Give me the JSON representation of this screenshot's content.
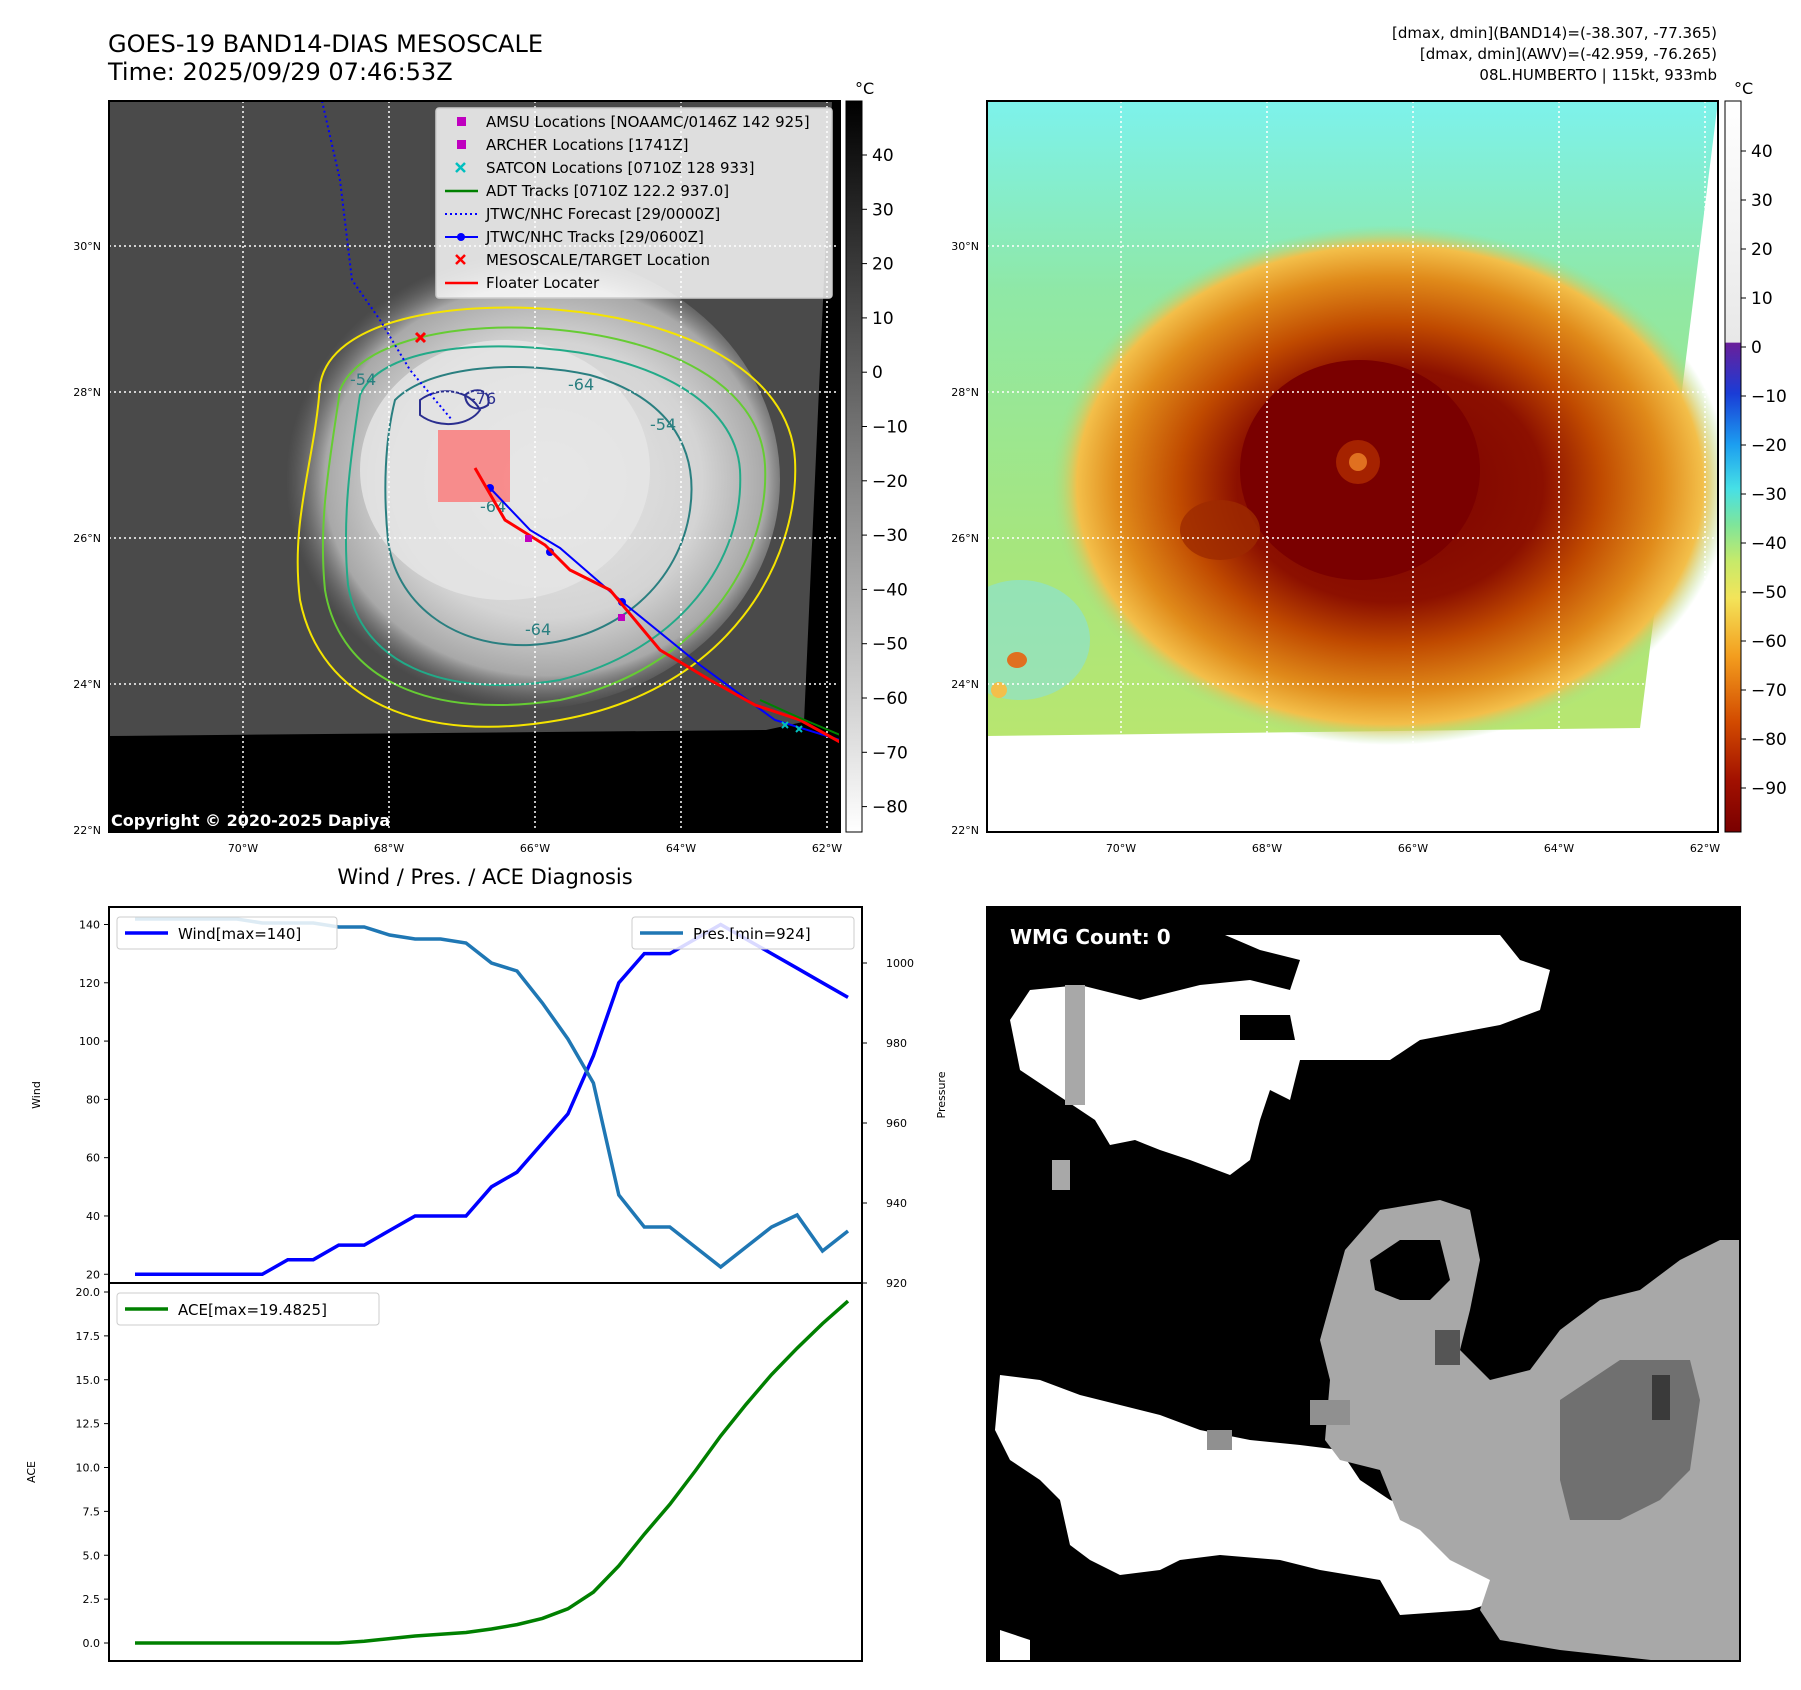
{
  "header": {
    "title_line1": "GOES-19 BAND14-DIAS MESOSCALE",
    "title_line2": "Time: 2025/09/29 07:46:53Z",
    "info_line1": "[dmax, dmin](BAND14)=(-38.307, -77.365)",
    "info_line2": "[dmax, dmin](AWV)=(-42.959, -76.265)",
    "info_line3": "08L.HUMBERTO | 115kt, 933mb"
  },
  "map": {
    "lat_labels": [
      "30°N",
      "28°N",
      "26°N",
      "24°N",
      "22°N"
    ],
    "lon_labels": [
      "70°W",
      "68°W",
      "66°W",
      "64°W",
      "62°W"
    ],
    "copyright": "Copyright © 2020-2025 Dapiya",
    "contour_labels": [
      "-54",
      "-64",
      "-76",
      "-54",
      "-64",
      "-64"
    ],
    "legend": [
      {
        "label": "AMSU Locations [NOAAMC/0146Z 142 925]",
        "color": "#bf00bf",
        "marker": "square"
      },
      {
        "label": "ARCHER Locations [1741Z]",
        "color": "#bf00bf",
        "marker": "square"
      },
      {
        "label": "SATCON Locations [0710Z 128 933]",
        "color": "#00bfbf",
        "marker": "x"
      },
      {
        "label": "ADT Tracks [0710Z 122.2 937.0]",
        "color": "#008000",
        "marker": "line"
      },
      {
        "label": "JTWC/NHC Forecast [29/0000Z]",
        "color": "#0000ff",
        "marker": "dotted"
      },
      {
        "label": "JTWC/NHC Tracks [29/0600Z]",
        "color": "#0000ff",
        "marker": "dotline"
      },
      {
        "label": "MESOSCALE/TARGET Location",
        "color": "#ff0000",
        "marker": "x"
      },
      {
        "label": "Floater Locater",
        "color": "#ff0000",
        "marker": "line"
      }
    ]
  },
  "colorbars": {
    "unit": "°C",
    "ir_ticks": [
      "40",
      "30",
      "20",
      "10",
      "0",
      "−10",
      "−20",
      "−30",
      "−40",
      "−50",
      "−60",
      "−70",
      "−80"
    ],
    "color_ticks": [
      "40",
      "30",
      "20",
      "10",
      "0",
      "−10",
      "−20",
      "−30",
      "−40",
      "−50",
      "−60",
      "−70",
      "−80",
      "−90"
    ]
  },
  "wmg": {
    "label": "WMG Count: 0"
  },
  "chart_data": [
    {
      "type": "line",
      "title": "Wind / Pres. / ACE Diagnosis",
      "ylabel": "Wind",
      "y2label": "Pressure",
      "ylim": [
        17,
        146
      ],
      "y2lim": [
        920,
        1014
      ],
      "yticks": [
        "140",
        "120",
        "100",
        "80",
        "60",
        "40",
        "20"
      ],
      "y2ticks": [
        "1000",
        "980",
        "960",
        "940",
        "920"
      ],
      "series": [
        {
          "name": "Wind[max=140]",
          "color": "#0000ff",
          "values": [
            20,
            20,
            20,
            20,
            20,
            20,
            25,
            25,
            30,
            30,
            35,
            40,
            40,
            40,
            50,
            55,
            65,
            75,
            95,
            120,
            130,
            130,
            135,
            140,
            135,
            130,
            125,
            120,
            115
          ]
        },
        {
          "name": "Pres.[min=924]",
          "color": "#1f77b4",
          "values": [
            1011,
            1011,
            1011,
            1011,
            1011,
            1010,
            1010,
            1010,
            1009,
            1009,
            1007,
            1006,
            1006,
            1005,
            1000,
            998,
            990,
            981,
            970,
            942,
            934,
            934,
            929,
            924,
            929,
            934,
            937,
            928,
            933
          ]
        }
      ]
    },
    {
      "type": "line",
      "ylabel": "ACE",
      "ylim": [
        -1,
        20
      ],
      "yticks": [
        "20.0",
        "17.5",
        "15.0",
        "12.5",
        "10.0",
        "7.5",
        "5.0",
        "2.5",
        "0.0"
      ],
      "series": [
        {
          "name": "ACE[max=19.4825]",
          "color": "#008000",
          "values": [
            0,
            0,
            0,
            0,
            0,
            0,
            0,
            0,
            0,
            0.1,
            0.25,
            0.4,
            0.5,
            0.6,
            0.8,
            1.05,
            1.4,
            1.95,
            2.9,
            4.4,
            6.2,
            7.9,
            9.8,
            11.8,
            13.6,
            15.3,
            16.8,
            18.2,
            19.48
          ]
        }
      ]
    }
  ]
}
